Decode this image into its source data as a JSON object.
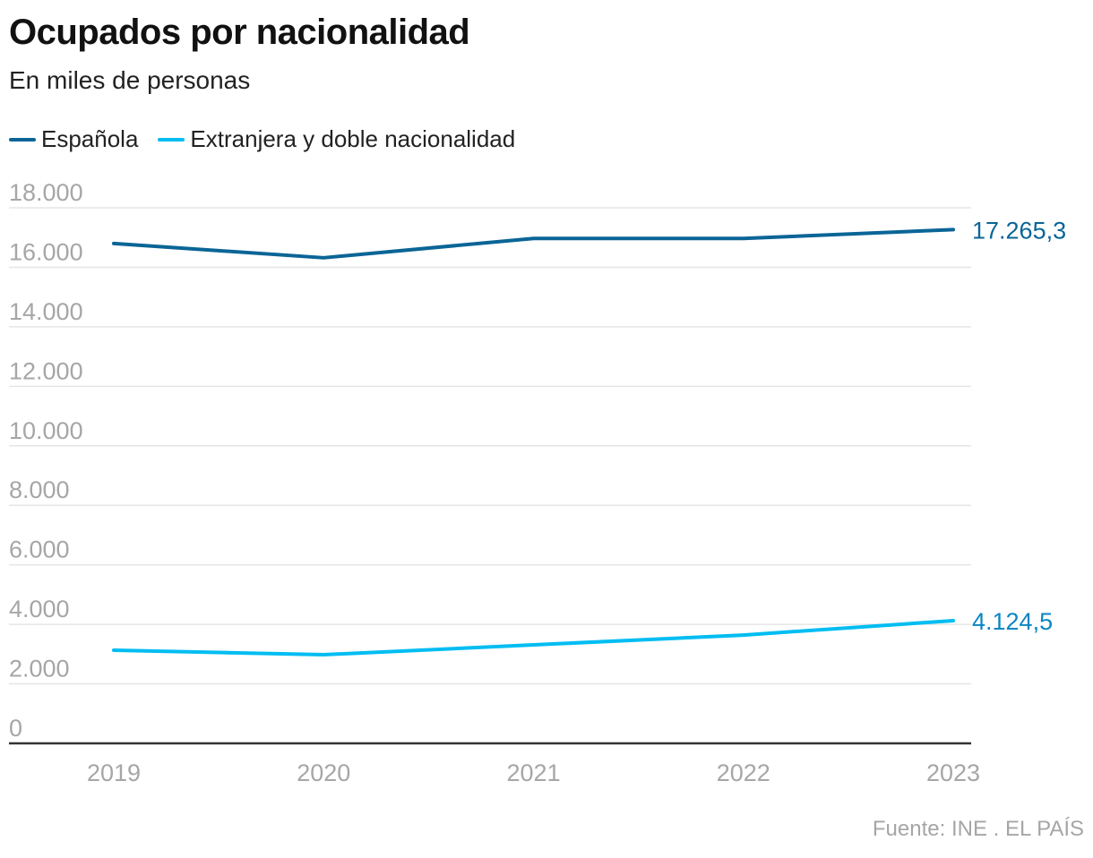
{
  "header": {
    "title": "Ocupados por nacionalidad",
    "subtitle": "En miles de personas"
  },
  "legend": [
    {
      "label": "Española",
      "color": "#0a6596"
    },
    {
      "label": "Extranjera y doble nacionalidad",
      "color": "#00bdf2"
    }
  ],
  "footer": {
    "source": "Fuente: INE . EL PAÍS"
  },
  "chart_data": {
    "type": "line",
    "title": "Ocupados por nacionalidad",
    "subtitle": "En miles de personas",
    "xlabel": "",
    "ylabel": "",
    "x": [
      "2019",
      "2020",
      "2021",
      "2022",
      "2023"
    ],
    "ylim": [
      0,
      18000
    ],
    "yticks": [
      0,
      2000,
      4000,
      6000,
      8000,
      10000,
      12000,
      14000,
      16000,
      18000
    ],
    "ytick_labels": [
      "0",
      "2.000",
      "4.000",
      "6.000",
      "8.000",
      "10.000",
      "12.000",
      "14.000",
      "16.000",
      "18.000"
    ],
    "grid": true,
    "legend_position": "top-left",
    "series": [
      {
        "name": "Española",
        "color": "#0a6596",
        "values": [
          16800,
          16320,
          16970,
          16970,
          17265.3
        ],
        "end_label": "17.265,3"
      },
      {
        "name": "Extranjera y doble nacionalidad",
        "color": "#00bdf2",
        "values": [
          3130,
          2980,
          3310,
          3640,
          4124.5
        ],
        "end_label": "4.124,5"
      }
    ],
    "end_label_color_1": "#0a6596",
    "end_label_color_2": "#0a86c2"
  }
}
